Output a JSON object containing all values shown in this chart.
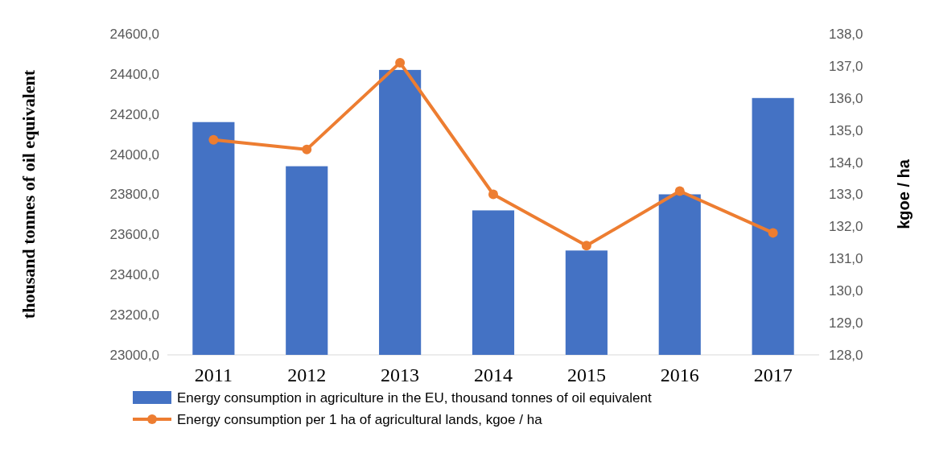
{
  "chart_data": {
    "type": "bar",
    "categories": [
      "2011",
      "2012",
      "2013",
      "2014",
      "2015",
      "2016",
      "2017"
    ],
    "ylabel": "thousand tonnes of oil equivalent",
    "y2label": "kgoe / ha",
    "series": [
      {
        "name": "Energy consumption in agriculture in the EU, thousand tonnes of oil equivalent",
        "color": "#4472c4",
        "values": [
          24160,
          23940,
          24420,
          23720,
          23520,
          23800,
          24280
        ]
      },
      {
        "name": "Energy consumption per 1 ha of agricultural lands, kgoe / ha",
        "type": "line",
        "axis": "y2",
        "color": "#ed7d31",
        "marker": "circle",
        "values": [
          134.7,
          134.4,
          137.1,
          133.0,
          131.4,
          133.1,
          131.8
        ]
      }
    ],
    "ylim": [
      23000,
      24600
    ],
    "yticks": [
      {
        "value": 23000,
        "label": "23000,0"
      },
      {
        "value": 23200,
        "label": "23200,0"
      },
      {
        "value": 23400,
        "label": "23400,0"
      },
      {
        "value": 23600,
        "label": "23600,0"
      },
      {
        "value": 23800,
        "label": "23800,0"
      },
      {
        "value": 24000,
        "label": "24000,0"
      },
      {
        "value": 24200,
        "label": "24200,0"
      },
      {
        "value": 24400,
        "label": "24400,0"
      },
      {
        "value": 24600,
        "label": "24600,0"
      }
    ],
    "y2lim": [
      128,
      138
    ],
    "y2ticks": [
      {
        "value": 128,
        "label": "128,0"
      },
      {
        "value": 129,
        "label": "129,0"
      },
      {
        "value": 130,
        "label": "130,0"
      },
      {
        "value": 131,
        "label": "131,0"
      },
      {
        "value": 132,
        "label": "132,0"
      },
      {
        "value": 133,
        "label": "133,0"
      },
      {
        "value": 134,
        "label": "134,0"
      },
      {
        "value": 135,
        "label": "135,0"
      },
      {
        "value": 136,
        "label": "136,0"
      },
      {
        "value": 137,
        "label": "137,0"
      },
      {
        "value": 138,
        "label": "138,0"
      }
    ],
    "legend": "bottom"
  }
}
